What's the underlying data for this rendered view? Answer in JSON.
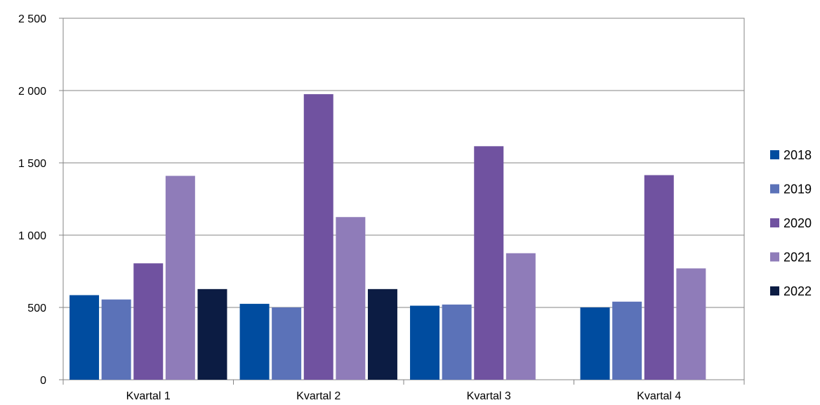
{
  "chart_data": {
    "type": "bar",
    "categories": [
      "Kvartal 1",
      "Kvartal 2",
      "Kvartal 3",
      "Kvartal 4"
    ],
    "series": [
      {
        "name": "2018",
        "values": [
          585,
          525,
          512,
          500
        ],
        "color": "#004c9f"
      },
      {
        "name": "2019",
        "values": [
          555,
          500,
          520,
          540
        ],
        "color": "#5b72b8"
      },
      {
        "name": "2020",
        "values": [
          805,
          1975,
          1615,
          1415
        ],
        "color": "#7052a0"
      },
      {
        "name": "2021",
        "values": [
          1410,
          1125,
          875,
          770
        ],
        "color": "#8f7cb9"
      },
      {
        "name": "2022",
        "values": [
          627,
          627,
          null,
          null
        ],
        "color": "#0c1c43"
      }
    ],
    "ylim": [
      0,
      2500
    ],
    "y_ticks": [
      {
        "value": 0,
        "label": "0"
      },
      {
        "value": 500,
        "label": "500"
      },
      {
        "value": 1000,
        "label": "1 000"
      },
      {
        "value": 1500,
        "label": "1 500"
      },
      {
        "value": 2000,
        "label": "2 000"
      },
      {
        "value": 2500,
        "label": "2 500"
      }
    ],
    "grid": true,
    "legend_position": "right",
    "title": "",
    "xlabel": "",
    "ylabel": ""
  }
}
